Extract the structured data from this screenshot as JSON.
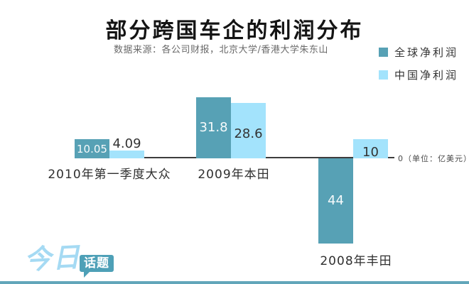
{
  "header": {
    "title": "部分跨国车企的利润分布",
    "subtitle": "数据来源：各公司财报，北京大学/香港大学朱东山"
  },
  "legend": {
    "items": [
      {
        "label": "全球净利润",
        "color": "#57a1b5"
      },
      {
        "label": "中国净利润",
        "color": "#a3e3fc"
      }
    ]
  },
  "chart_data": {
    "type": "bar",
    "title": "部分跨国车企的利润分布",
    "categories": [
      "2010年第一季度大众",
      "2009年本田",
      "2008年丰田"
    ],
    "series": [
      {
        "name": "全球净利润",
        "color": "#57a1b5",
        "values": [
          10.05,
          31.8,
          -44
        ],
        "labels": [
          "10.05",
          "31.8",
          "44"
        ]
      },
      {
        "name": "中国净利润",
        "color": "#a3e3fc",
        "values": [
          4.09,
          28.6,
          10
        ],
        "labels": [
          "4.09",
          "28.6",
          "10"
        ]
      }
    ],
    "unit": "亿美元",
    "ylim": [
      -48,
      34
    ],
    "grid": false,
    "legend_position": "top-right",
    "axis": {
      "zero_label": "0（单位：亿美元）",
      "baseline_value": 0
    }
  },
  "footer": {
    "logo_text_1": "今日",
    "logo_text_2": "话题"
  },
  "colors": {
    "bar_global": "#57a1b5",
    "bar_china": "#a3e3fc",
    "axis_line": "#3d3d3d",
    "logo_blue": "#a5daf3",
    "logo_bubble": "#4ea0b7",
    "bottom_strip": "#62a6ba"
  }
}
